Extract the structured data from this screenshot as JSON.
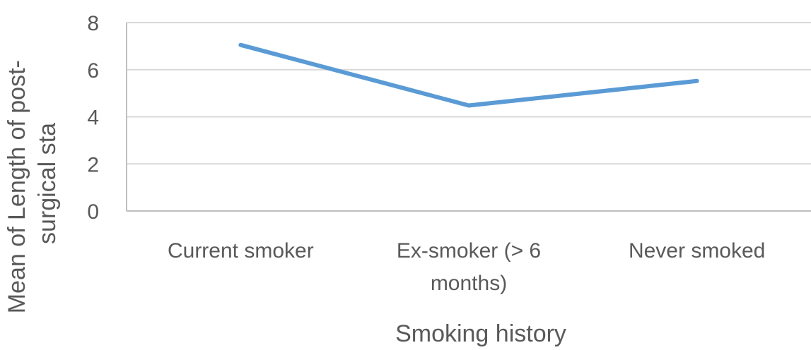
{
  "chart_data": {
    "type": "line",
    "categories": [
      "Current smoker",
      "Ex-smoker (> 6 months)",
      "Never smoked"
    ],
    "category_lines": [
      [
        "Current smoker"
      ],
      [
        "Ex-smoker (> 6",
        "months)"
      ],
      [
        "Never smoked"
      ]
    ],
    "series": [
      {
        "values": [
          7.05,
          4.48,
          5.52
        ],
        "color": "#5b9bd5"
      }
    ],
    "xlabel": "Smoking history",
    "ylabel_lines": [
      "Mean of Length of post-",
      "surgical sta"
    ],
    "ylim": [
      0,
      8
    ],
    "yticks": [
      0,
      2,
      4,
      6,
      8
    ],
    "grid": true,
    "grid_color": "#d9d9d9",
    "axis_color": "#bfbfbf",
    "text_color": "#595959"
  }
}
